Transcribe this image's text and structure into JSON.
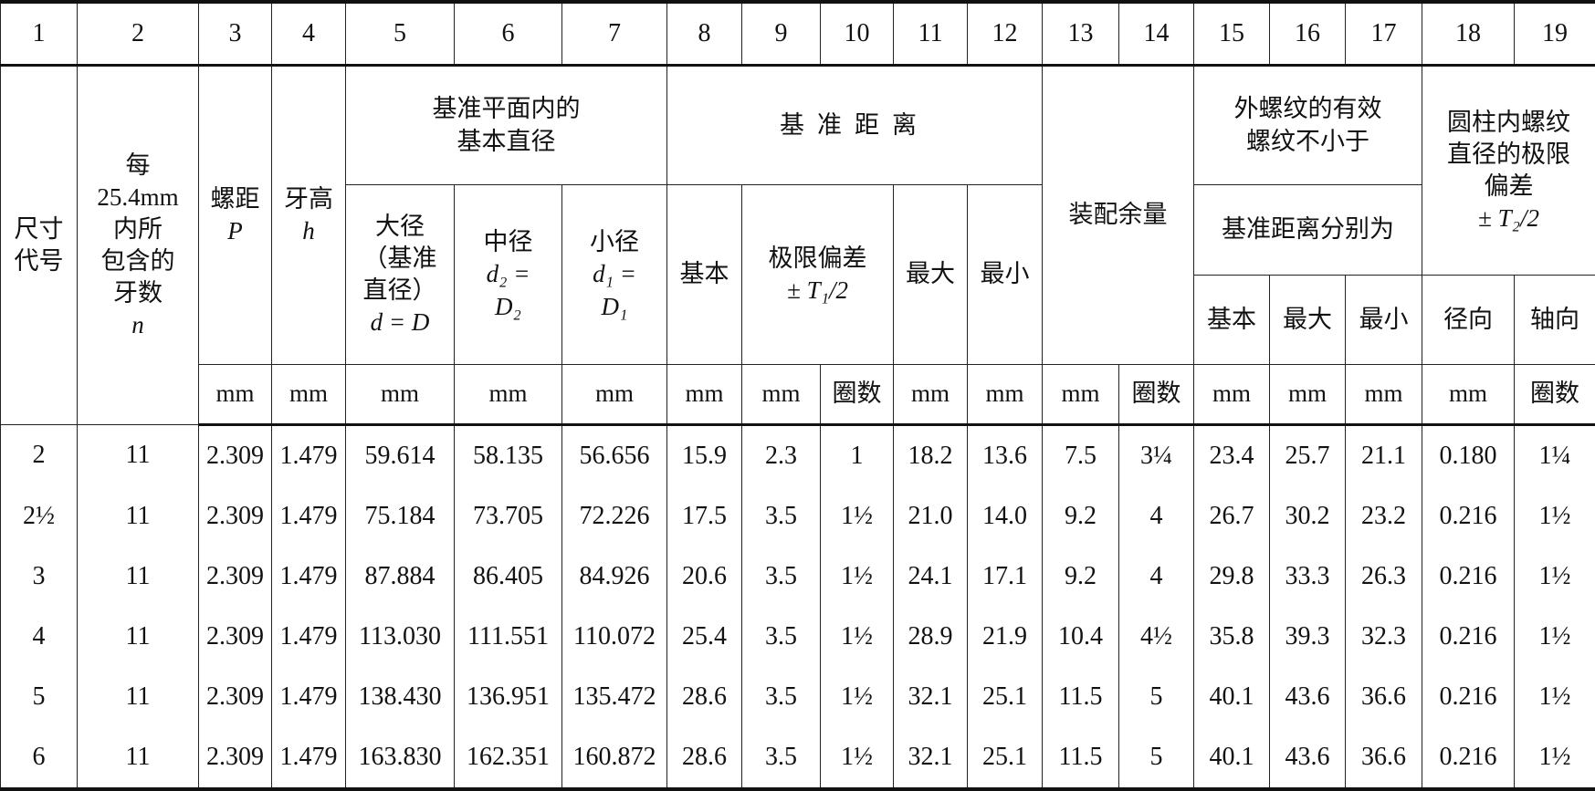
{
  "column_numbers": [
    "1",
    "2",
    "3",
    "4",
    "5",
    "6",
    "7",
    "8",
    "9",
    "10",
    "11",
    "12",
    "13",
    "14",
    "15",
    "16",
    "17",
    "18",
    "19"
  ],
  "headers": {
    "size_code": [
      "尺寸",
      "代号"
    ],
    "threads_per_inch": [
      "每",
      "25.4mm",
      "内所",
      "包含的",
      "牙数",
      "n"
    ],
    "pitch": [
      "螺距",
      "P"
    ],
    "thread_height": [
      "牙高",
      "h"
    ],
    "basic_diameters_group": [
      "基准平面内的",
      "基本直径"
    ],
    "major_diameter": [
      "大径",
      "（基准",
      "直径）",
      "d = D"
    ],
    "pitch_diameter": [
      "中径",
      "d₂ =",
      "D₂"
    ],
    "minor_diameter": [
      "小径",
      "d₁ =",
      "D₁"
    ],
    "gauge_length_group": "基准距离",
    "gauge_basic": "基本",
    "gauge_tolerance": [
      "极限偏差",
      "± T₁/2"
    ],
    "gauge_max": "最大",
    "gauge_min": "最小",
    "assembly_allowance": "装配余量",
    "effective_thread_group": [
      "外螺纹的有效",
      "螺纹不小于"
    ],
    "effective_thread_sub": "基准距离分别为",
    "eff_basic": "基本",
    "eff_max": "最大",
    "eff_min": "最小",
    "internal_tolerance_group": [
      "圆柱内螺纹",
      "直径的极限",
      "偏差",
      "± T₂/2"
    ],
    "radial": "径向",
    "axial": "轴向"
  },
  "units": [
    "mm",
    "mm",
    "mm",
    "mm",
    "mm",
    "mm",
    "mm",
    "圈数",
    "mm",
    "mm",
    "mm",
    "圈数",
    "mm",
    "mm",
    "mm",
    "mm",
    "圈数"
  ],
  "rows": [
    [
      "2",
      "11",
      "2.309",
      "1.479",
      "59.614",
      "58.135",
      "56.656",
      "15.9",
      "2.3",
      "1",
      "18.2",
      "13.6",
      "7.5",
      "3¼",
      "23.4",
      "25.7",
      "21.1",
      "0.180",
      "1¼"
    ],
    [
      "2½",
      "11",
      "2.309",
      "1.479",
      "75.184",
      "73.705",
      "72.226",
      "17.5",
      "3.5",
      "1½",
      "21.0",
      "14.0",
      "9.2",
      "4",
      "26.7",
      "30.2",
      "23.2",
      "0.216",
      "1½"
    ],
    [
      "3",
      "11",
      "2.309",
      "1.479",
      "87.884",
      "86.405",
      "84.926",
      "20.6",
      "3.5",
      "1½",
      "24.1",
      "17.1",
      "9.2",
      "4",
      "29.8",
      "33.3",
      "26.3",
      "0.216",
      "1½"
    ],
    [
      "4",
      "11",
      "2.309",
      "1.479",
      "113.030",
      "111.551",
      "110.072",
      "25.4",
      "3.5",
      "1½",
      "28.9",
      "21.9",
      "10.4",
      "4½",
      "35.8",
      "39.3",
      "32.3",
      "0.216",
      "1½"
    ],
    [
      "5",
      "11",
      "2.309",
      "1.479",
      "138.430",
      "136.951",
      "135.472",
      "28.6",
      "3.5",
      "1½",
      "32.1",
      "25.1",
      "11.5",
      "5",
      "40.1",
      "43.6",
      "36.6",
      "0.216",
      "1½"
    ],
    [
      "6",
      "11",
      "2.309",
      "1.479",
      "163.830",
      "162.351",
      "160.872",
      "28.6",
      "3.5",
      "1½",
      "32.1",
      "25.1",
      "11.5",
      "5",
      "40.1",
      "43.6",
      "36.6",
      "0.216",
      "1½"
    ]
  ]
}
